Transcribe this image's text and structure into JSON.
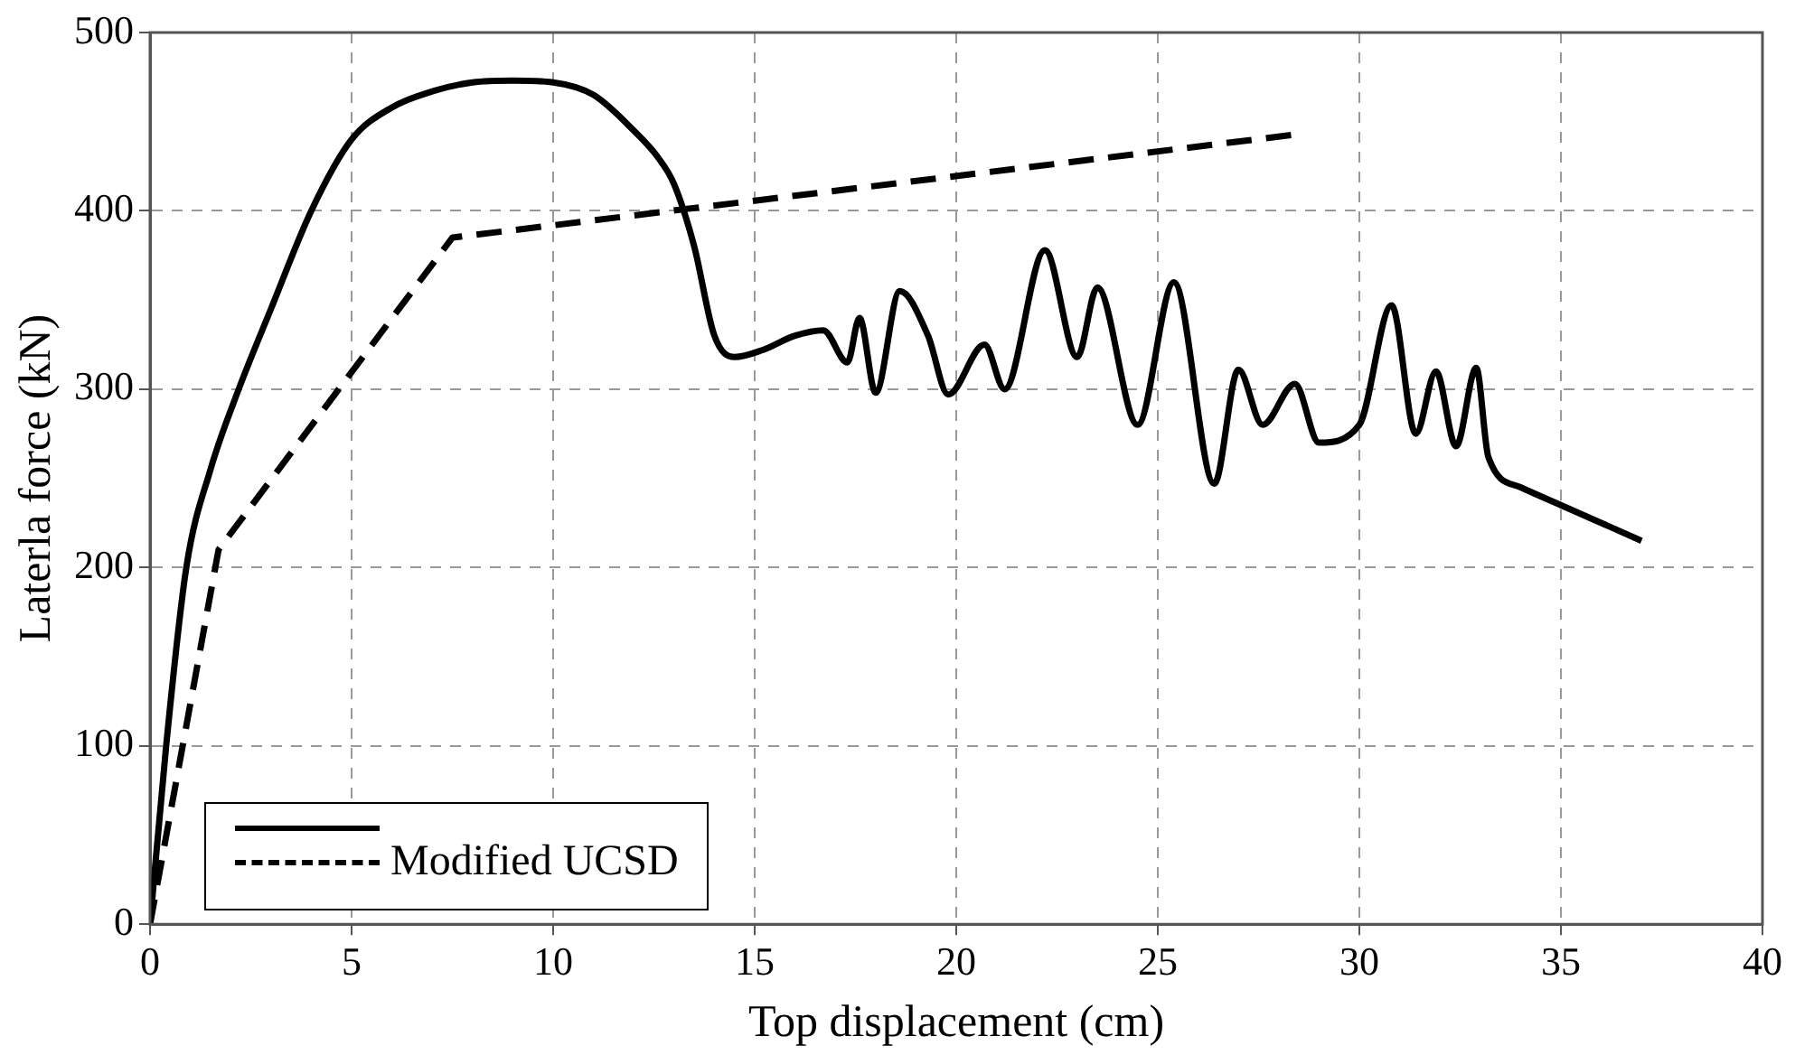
{
  "chart_data": {
    "type": "line",
    "xlabel": "Top displacement (cm)",
    "ylabel": "Laterla force (kN)",
    "xlim": [
      0,
      40
    ],
    "xticks": [
      0,
      5,
      10,
      15,
      20,
      25,
      30,
      35,
      40
    ],
    "ylim": [
      0,
      500
    ],
    "yticks": [
      0,
      100,
      200,
      300,
      400,
      500
    ],
    "grid": true,
    "legend": "bottom left",
    "marker": "none",
    "series": [
      {
        "color": "#000000",
        "line_style": "solid",
        "x": [
          0,
          0.4,
          0.9,
          1.5,
          2.2,
          3,
          4,
          5,
          6,
          7,
          8,
          9,
          10,
          11,
          12,
          12.6,
          13,
          13.5,
          14,
          14.5,
          15.2,
          16,
          16.7,
          17.3,
          17.6,
          18,
          18.6,
          19.3,
          19.8,
          20.7,
          21.2,
          22.2,
          23,
          23.5,
          24.5,
          25.4,
          26.4,
          27,
          27.6,
          28.4,
          29,
          30,
          30.8,
          31.4,
          31.9,
          32.4,
          32.9,
          33.2,
          34,
          35,
          37
        ],
        "values": [
          0,
          100,
          200,
          255,
          300,
          345,
          400,
          440,
          458,
          467,
          472,
          473,
          472,
          465,
          445,
          430,
          415,
          380,
          330,
          318,
          322,
          330,
          333,
          315,
          340,
          298,
          355,
          330,
          297,
          325,
          300,
          378,
          318,
          357,
          280,
          360,
          247,
          311,
          280,
          303,
          270,
          280,
          347,
          275,
          310,
          268,
          312,
          262,
          245,
          235,
          215
        ]
      },
      {
        "name": "Modified UCSD",
        "color": "#000000",
        "line_style": "dashed",
        "x": [
          0,
          1.7,
          7.5,
          28.5
        ],
        "values": [
          0,
          210,
          385,
          443
        ]
      }
    ]
  }
}
